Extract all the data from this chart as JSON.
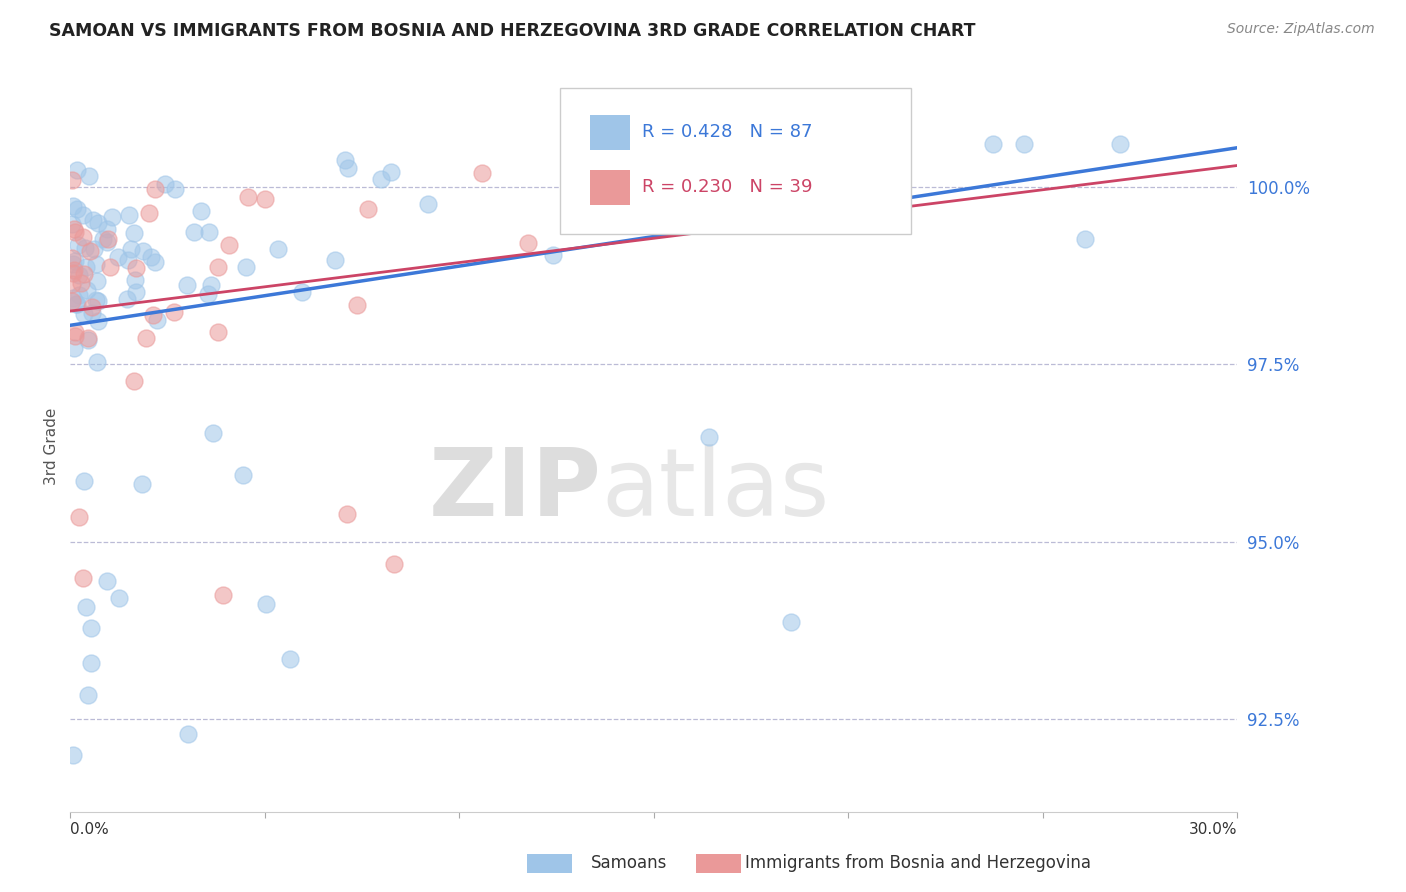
{
  "title": "SAMOAN VS IMMIGRANTS FROM BOSNIA AND HERZEGOVINA 3RD GRADE CORRELATION CHART",
  "source_text": "Source: ZipAtlas.com",
  "ylabel": "3rd Grade",
  "xlim": [
    0.0,
    30.0
  ],
  "ylim": [
    91.2,
    101.5
  ],
  "yticks": [
    92.5,
    95.0,
    97.5,
    100.0
  ],
  "ytick_labels": [
    "92.5%",
    "95.0%",
    "97.5%",
    "100.0%"
  ],
  "blue_color": "#9fc5e8",
  "pink_color": "#ea9999",
  "blue_line_color": "#3c78d8",
  "pink_line_color": "#cc4466",
  "legend_blue_r": "R = 0.428",
  "legend_blue_n": "N = 87",
  "legend_pink_r": "R = 0.230",
  "legend_pink_n": "N = 39",
  "watermark_zip": "ZIP",
  "watermark_atlas": "atlas",
  "grid_color": "#aaaacc",
  "blue_line_x0": 0.0,
  "blue_line_x1": 30.0,
  "blue_line_y0": 98.05,
  "blue_line_y1": 100.55,
  "pink_line_x0": 0.0,
  "pink_line_x1": 30.0,
  "pink_line_y0": 98.25,
  "pink_line_y1": 100.3
}
